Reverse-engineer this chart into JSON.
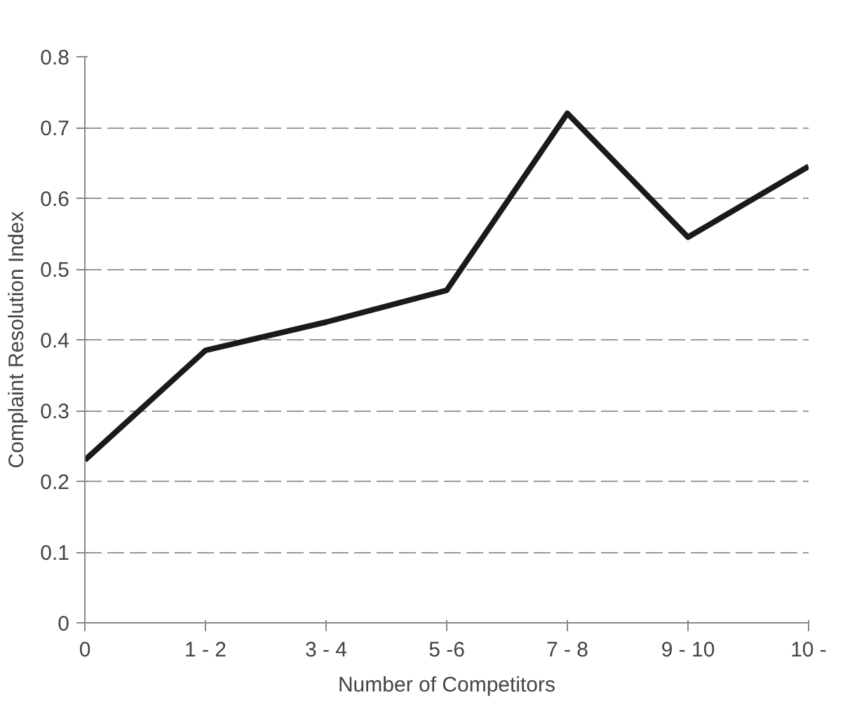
{
  "chart_data": {
    "type": "line",
    "xlabel": "Number of Competitors",
    "ylabel": "Complaint Resolution Index",
    "categories": [
      "0",
      "1 - 2",
      "3 - 4",
      "5 -6",
      "7 - 8",
      "9 - 10",
      "10 -"
    ],
    "series": [
      {
        "color": "#1a1a1a",
        "values": [
          0.23,
          0.385,
          0.425,
          0.47,
          0.72,
          0.545,
          0.645
        ]
      }
    ],
    "ylim": [
      0,
      0.8
    ],
    "yticks": [
      0,
      0.1,
      0.2,
      0.3,
      0.4,
      0.5,
      0.6,
      0.7,
      0.8
    ],
    "grid": "y",
    "line_style": "solid",
    "marker": "none"
  }
}
